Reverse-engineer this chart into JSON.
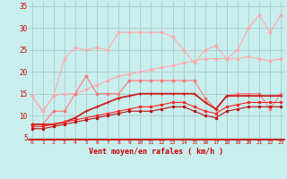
{
  "xlabel": "Vent moyen/en rafales ( km/h )",
  "bg_color": "#c8eeee",
  "grid_color": "#b0c8c8",
  "x_ticks": [
    0,
    1,
    2,
    3,
    4,
    5,
    6,
    7,
    8,
    9,
    10,
    11,
    12,
    13,
    14,
    15,
    16,
    17,
    18,
    19,
    20,
    21,
    22,
    23
  ],
  "y_ticks": [
    5,
    10,
    15,
    20,
    25,
    30,
    35
  ],
  "ylim": [
    4.5,
    36
  ],
  "xlim": [
    -0.3,
    23.3
  ],
  "series": [
    {
      "color": "#ffaaaa",
      "marker": "o",
      "markersize": 2.0,
      "linewidth": 0.8,
      "x": [
        0,
        1,
        2,
        3,
        4,
        5,
        6,
        7,
        8,
        9,
        10,
        11,
        12,
        13,
        14,
        15,
        16,
        17,
        18,
        19,
        20,
        21,
        22,
        23
      ],
      "y": [
        14.5,
        11,
        14.5,
        23,
        25.5,
        25,
        25.5,
        25,
        29,
        29,
        29,
        29,
        29,
        28,
        25,
        22,
        25,
        26,
        23,
        25,
        30,
        33,
        29,
        33
      ]
    },
    {
      "color": "#ffaaaa",
      "marker": "o",
      "markersize": 2.0,
      "linewidth": 0.8,
      "x": [
        0,
        1,
        2,
        3,
        4,
        5,
        6,
        7,
        8,
        9,
        10,
        11,
        12,
        13,
        14,
        15,
        16,
        17,
        18,
        19,
        20,
        21,
        22,
        23
      ],
      "y": [
        14.5,
        11,
        14.5,
        15,
        15,
        16,
        17,
        18,
        19,
        19.5,
        20,
        20.5,
        21,
        21.5,
        22,
        22.5,
        23,
        23,
        23,
        23,
        23.5,
        23,
        22.5,
        23
      ]
    },
    {
      "color": "#ff7777",
      "marker": "o",
      "markersize": 2.0,
      "linewidth": 0.8,
      "x": [
        0,
        1,
        2,
        3,
        4,
        5,
        6,
        7,
        8,
        9,
        10,
        11,
        12,
        13,
        14,
        15,
        16,
        17,
        18,
        19,
        20,
        21,
        22,
        23
      ],
      "y": [
        8,
        8,
        11,
        11,
        15,
        19,
        15,
        15,
        15,
        18,
        18,
        18,
        18,
        18,
        18,
        18,
        14,
        11.5,
        14.5,
        15,
        15,
        15,
        11.5,
        15
      ]
    },
    {
      "color": "#cc2222",
      "marker": "+",
      "markersize": 3.5,
      "linewidth": 1.3,
      "x": [
        0,
        1,
        2,
        3,
        4,
        5,
        6,
        7,
        8,
        9,
        10,
        11,
        12,
        13,
        14,
        15,
        16,
        17,
        18,
        19,
        20,
        21,
        22,
        23
      ],
      "y": [
        8,
        8,
        8,
        8.5,
        9.5,
        11,
        12,
        13,
        14,
        14.5,
        15,
        15,
        15,
        15,
        15,
        15,
        13,
        11.5,
        14.5,
        14.5,
        14.5,
        14.5,
        14.5,
        14.5
      ]
    },
    {
      "color": "#ff2222",
      "marker": "o",
      "markersize": 1.8,
      "linewidth": 0.8,
      "x": [
        0,
        1,
        2,
        3,
        4,
        5,
        6,
        7,
        8,
        9,
        10,
        11,
        12,
        13,
        14,
        15,
        16,
        17,
        18,
        19,
        20,
        21,
        22,
        23
      ],
      "y": [
        7.5,
        7.5,
        8,
        8.5,
        9,
        9.5,
        10,
        10.5,
        11,
        11.5,
        12,
        12,
        12.5,
        13,
        13,
        12,
        11,
        10.5,
        12,
        12.5,
        13,
        13,
        13,
        13
      ]
    },
    {
      "color": "#bb1111",
      "marker": "o",
      "markersize": 1.8,
      "linewidth": 0.8,
      "x": [
        0,
        1,
        2,
        3,
        4,
        5,
        6,
        7,
        8,
        9,
        10,
        11,
        12,
        13,
        14,
        15,
        16,
        17,
        18,
        19,
        20,
        21,
        22,
        23
      ],
      "y": [
        7,
        7,
        7.5,
        8,
        8.5,
        9,
        9.5,
        10,
        10.5,
        11,
        11,
        11,
        11.5,
        12,
        12,
        11,
        10,
        9.5,
        11,
        11.5,
        12,
        12,
        12,
        12
      ]
    }
  ]
}
